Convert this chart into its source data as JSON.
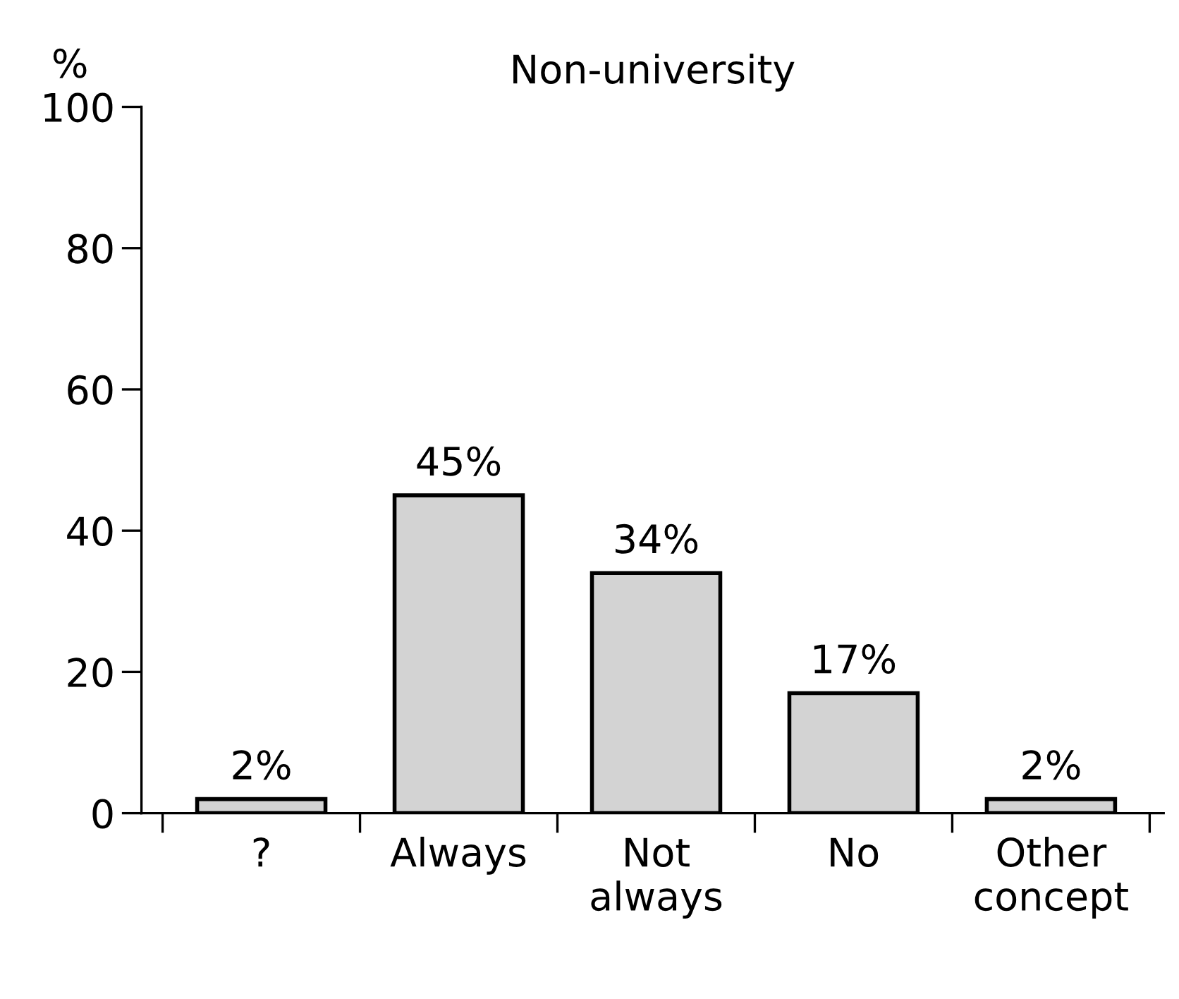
{
  "chart_data": {
    "type": "bar",
    "title": "Non-university",
    "ylabel": "%",
    "categories": [
      "?",
      "Always",
      "Not\nalways",
      "No",
      "Other\nconcept"
    ],
    "values": [
      2,
      45,
      34,
      17,
      2
    ],
    "value_labels": [
      "2%",
      "45%",
      "34%",
      "17%",
      "2%"
    ],
    "color": "#d3d3d3",
    "ylim": [
      0,
      100
    ],
    "yticks": [
      0,
      20,
      40,
      60,
      80,
      100
    ],
    "grid": false
  }
}
